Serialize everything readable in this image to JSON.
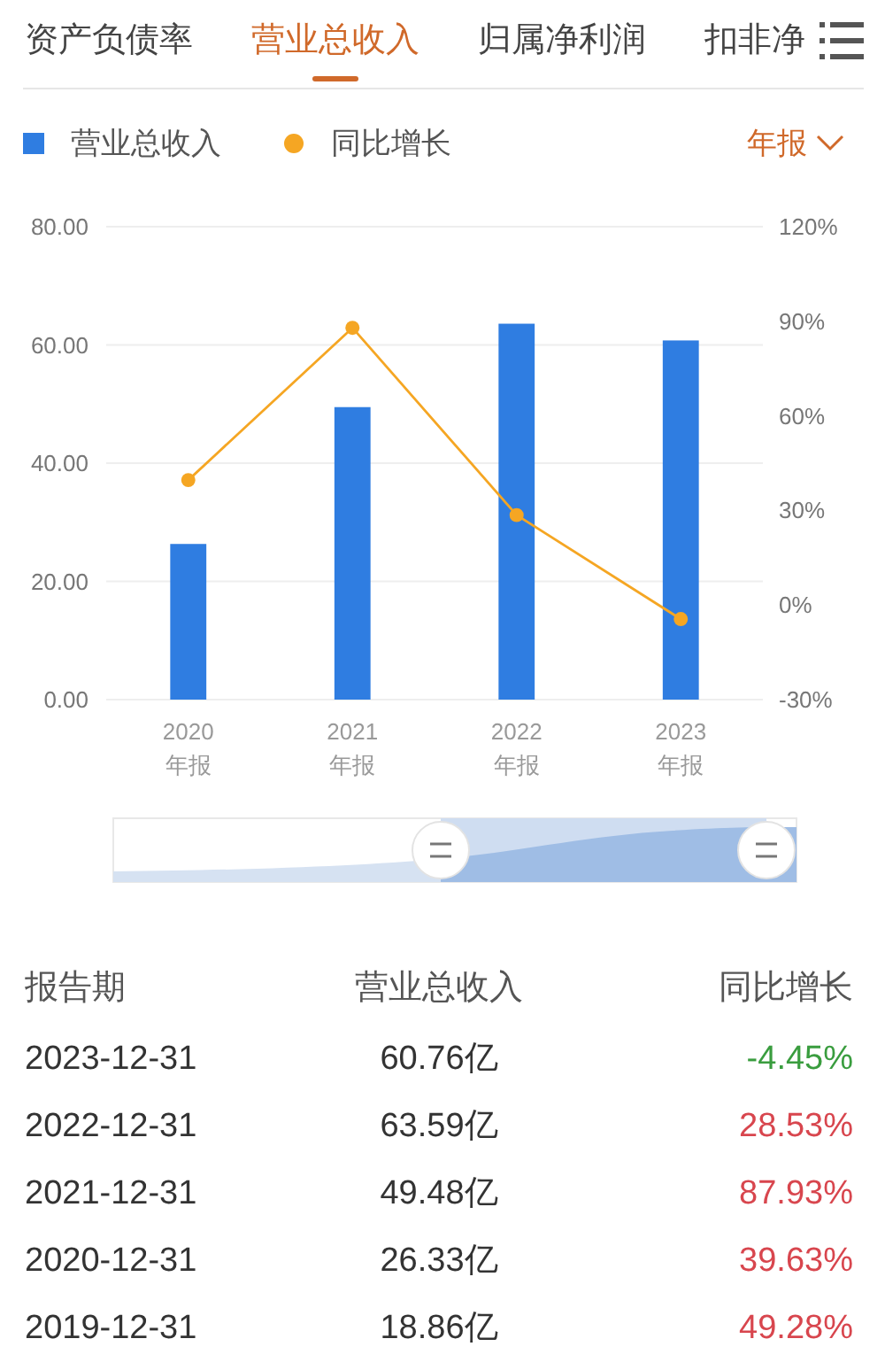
{
  "chart_data": {
    "type": "bar",
    "categories": [
      "2020\n年报",
      "2021\n年报",
      "2022\n年报",
      "2023\n年报"
    ],
    "series": [
      {
        "name": "营业总收入",
        "color": "#2f7de1",
        "values": [
          26.33,
          49.48,
          63.59,
          60.76
        ]
      },
      {
        "name": "同比增长",
        "type": "line",
        "axis": "y2",
        "color": "#f5a623",
        "values": [
          39.63,
          87.93,
          28.53,
          -4.45
        ]
      }
    ],
    "ylim": [
      0,
      80
    ],
    "yticks": [
      {
        "value": 0,
        "label": "0.00"
      },
      {
        "value": 20,
        "label": "20.00"
      },
      {
        "value": 40,
        "label": "40.00"
      },
      {
        "value": 60,
        "label": "60.00"
      },
      {
        "value": 80,
        "label": "80.00"
      }
    ],
    "y2lim": [
      -30,
      120
    ],
    "y2ticks": [
      {
        "value": -30,
        "label": "-30%"
      },
      {
        "value": 0,
        "label": "0%"
      },
      {
        "value": 30,
        "label": "30%"
      },
      {
        "value": 60,
        "label": "60%"
      },
      {
        "value": 90,
        "label": "90%"
      },
      {
        "value": 120,
        "label": "120%"
      }
    ],
    "grid": "y",
    "legend": "top left",
    "marker": "circle",
    "annotations": [
      "资产负债率",
      "营业总收入",
      "归属净利润",
      "扣非净",
      "年报",
      "报告期",
      "营业总收入",
      "同比增长",
      "2023-12-31",
      "60.76亿",
      "-4.45%",
      "2022-12-31",
      "63.59亿",
      "28.53%",
      "2021-12-31",
      "49.48亿",
      "87.93%",
      "2020-12-31",
      "26.33亿",
      "39.63%",
      "2019-12-31",
      "18.86亿",
      "49.28%"
    ]
  }
}
